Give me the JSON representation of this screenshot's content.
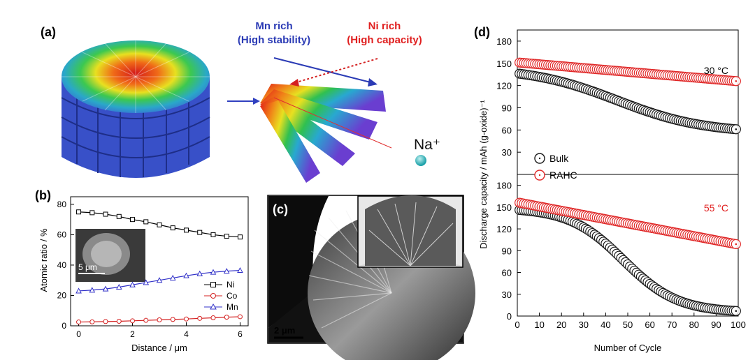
{
  "panels": {
    "a": {
      "label": "(a)",
      "mn_line1": "Mn rich",
      "mn_line2": "(High stability)",
      "ni_line1": "Ni rich",
      "ni_line2": "(High capacity)",
      "ion": "Na⁺"
    },
    "b": {
      "label": "(b)",
      "scale": "5 μm"
    },
    "c": {
      "label": "(c)",
      "scale": "2 μm"
    },
    "d": {
      "label": "(d)"
    }
  },
  "colors": {
    "ni": "#000000",
    "co": "#d42020",
    "mn": "#3030c8",
    "rahc": "#e02828",
    "bulk": "#1a1a1a",
    "mn_text": "#2b3bb5",
    "ni_text": "#e02020"
  },
  "chart_data": [
    {
      "id": "b",
      "type": "line",
      "title": "",
      "xlabel": "Distance / μm",
      "ylabel": "Atomic ratio / %",
      "xlim": [
        -0.3,
        6.3
      ],
      "ylim": [
        0,
        85
      ],
      "xticks": [
        0,
        2,
        4,
        6
      ],
      "yticks": [
        0,
        20,
        40,
        60,
        80
      ],
      "x": [
        0,
        0.5,
        1,
        1.5,
        2,
        2.5,
        3,
        3.5,
        4,
        4.5,
        5,
        5.5,
        6
      ],
      "series": [
        {
          "name": "Ni",
          "marker": "square",
          "values": [
            75,
            74.5,
            73.5,
            72,
            70,
            68.5,
            66.5,
            64.5,
            63,
            61.5,
            60,
            59,
            58.5
          ]
        },
        {
          "name": "Co",
          "marker": "circle",
          "values": [
            2.5,
            2.6,
            2.8,
            3,
            3.3,
            3.6,
            3.9,
            4.2,
            4.5,
            4.9,
            5.3,
            5.7,
            6
          ]
        },
        {
          "name": "Mn",
          "marker": "triangle",
          "values": [
            23,
            23.5,
            24.3,
            25.5,
            27,
            28.5,
            30,
            31.5,
            33,
            34.3,
            35.3,
            36,
            36.5
          ]
        }
      ],
      "legend": [
        "Ni",
        "Co",
        "Mn"
      ]
    },
    {
      "id": "d",
      "type": "scatter",
      "title": "",
      "xlabel": "Number of Cycle",
      "ylabel": "Discharge capacity / mAh (g-oxide)⁻¹",
      "xlim": [
        0,
        100
      ],
      "xticks": [
        0,
        10,
        20,
        30,
        40,
        50,
        60,
        70,
        80,
        90,
        100
      ],
      "subplots": [
        {
          "annotation": "30 °C",
          "ylim": [
            0,
            195
          ],
          "yticks": [
            30,
            60,
            90,
            120,
            150,
            180
          ],
          "series": [
            {
              "name": "Bulk",
              "start": 136,
              "end": 61,
              "shape": "sigmoid_shallow"
            },
            {
              "name": "RAHC",
              "start": 151,
              "end": 126,
              "shape": "linear"
            }
          ]
        },
        {
          "annotation": "55 °C",
          "ylim": [
            0,
            195
          ],
          "yticks": [
            0,
            30,
            60,
            90,
            120,
            150,
            180
          ],
          "series": [
            {
              "name": "Bulk",
              "start": 146,
              "end": 7,
              "shape": "sigmoid"
            },
            {
              "name": "RAHC",
              "start": 156,
              "end": 99,
              "shape": "linear"
            }
          ]
        }
      ],
      "legend": [
        "Bulk",
        "RAHC"
      ]
    }
  ]
}
